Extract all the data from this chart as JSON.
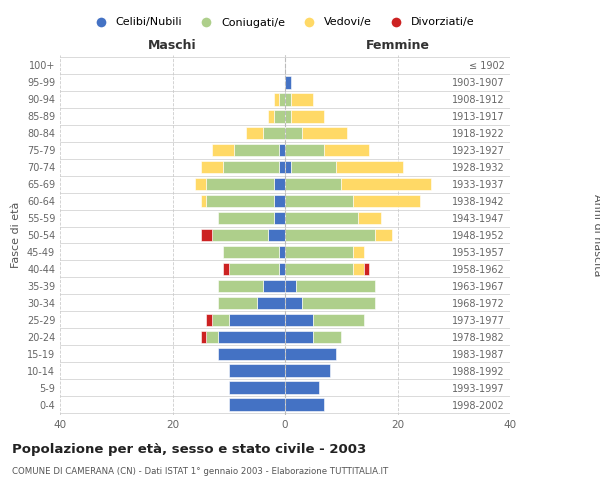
{
  "age_groups": [
    "0-4",
    "5-9",
    "10-14",
    "15-19",
    "20-24",
    "25-29",
    "30-34",
    "35-39",
    "40-44",
    "45-49",
    "50-54",
    "55-59",
    "60-64",
    "65-69",
    "70-74",
    "75-79",
    "80-84",
    "85-89",
    "90-94",
    "95-99",
    "100+"
  ],
  "birth_years": [
    "1998-2002",
    "1993-1997",
    "1988-1992",
    "1983-1987",
    "1978-1982",
    "1973-1977",
    "1968-1972",
    "1963-1967",
    "1958-1962",
    "1953-1957",
    "1948-1952",
    "1943-1947",
    "1938-1942",
    "1933-1937",
    "1928-1932",
    "1923-1927",
    "1918-1922",
    "1913-1917",
    "1908-1912",
    "1903-1907",
    "≤ 1902"
  ],
  "males": {
    "celibi": [
      10,
      10,
      10,
      12,
      12,
      10,
      5,
      4,
      1,
      1,
      3,
      2,
      2,
      2,
      1,
      1,
      0,
      0,
      0,
      0,
      0
    ],
    "coniugati": [
      0,
      0,
      0,
      0,
      2,
      3,
      7,
      8,
      9,
      10,
      10,
      10,
      12,
      12,
      10,
      8,
      4,
      2,
      1,
      0,
      0
    ],
    "vedovi": [
      0,
      0,
      0,
      0,
      0,
      0,
      0,
      0,
      0,
      0,
      0,
      0,
      1,
      2,
      4,
      4,
      3,
      1,
      1,
      0,
      0
    ],
    "divorziati": [
      0,
      0,
      0,
      0,
      1,
      1,
      0,
      0,
      1,
      0,
      2,
      0,
      0,
      0,
      0,
      0,
      0,
      0,
      0,
      0,
      0
    ]
  },
  "females": {
    "nubili": [
      7,
      6,
      8,
      9,
      5,
      5,
      3,
      2,
      0,
      0,
      0,
      0,
      0,
      0,
      1,
      0,
      0,
      0,
      0,
      1,
      0
    ],
    "coniugate": [
      0,
      0,
      0,
      0,
      5,
      9,
      13,
      14,
      12,
      12,
      16,
      13,
      12,
      10,
      8,
      7,
      3,
      1,
      1,
      0,
      0
    ],
    "vedove": [
      0,
      0,
      0,
      0,
      0,
      0,
      0,
      0,
      2,
      2,
      3,
      4,
      12,
      16,
      12,
      8,
      8,
      6,
      4,
      0,
      0
    ],
    "divorziate": [
      0,
      0,
      0,
      0,
      0,
      0,
      0,
      0,
      1,
      0,
      0,
      0,
      0,
      0,
      0,
      0,
      0,
      0,
      0,
      0,
      0
    ]
  },
  "colors": {
    "celibi_nubili": "#4472C4",
    "coniugati": "#AECF8B",
    "vedovi": "#FFD966",
    "divorziati": "#CC2222"
  },
  "xlim": [
    -40,
    40
  ],
  "xticks": [
    -40,
    -20,
    0,
    20,
    40
  ],
  "xticklabels": [
    "40",
    "20",
    "0",
    "20",
    "40"
  ],
  "title": "Popolazione per età, sesso e stato civile - 2003",
  "subtitle": "COMUNE DI CAMERANA (CN) - Dati ISTAT 1° gennaio 2003 - Elaborazione TUTTITALIA.IT",
  "ylabel": "Fasce di età",
  "ylabel_right": "Anni di nascita",
  "label_maschi": "Maschi",
  "label_femmine": "Femmine",
  "legend_labels": [
    "Celibi/Nubili",
    "Coniugati/e",
    "Vedovi/e",
    "Divorziati/e"
  ],
  "bar_height": 0.75,
  "background_color": "#ffffff",
  "grid_color": "#cccccc"
}
